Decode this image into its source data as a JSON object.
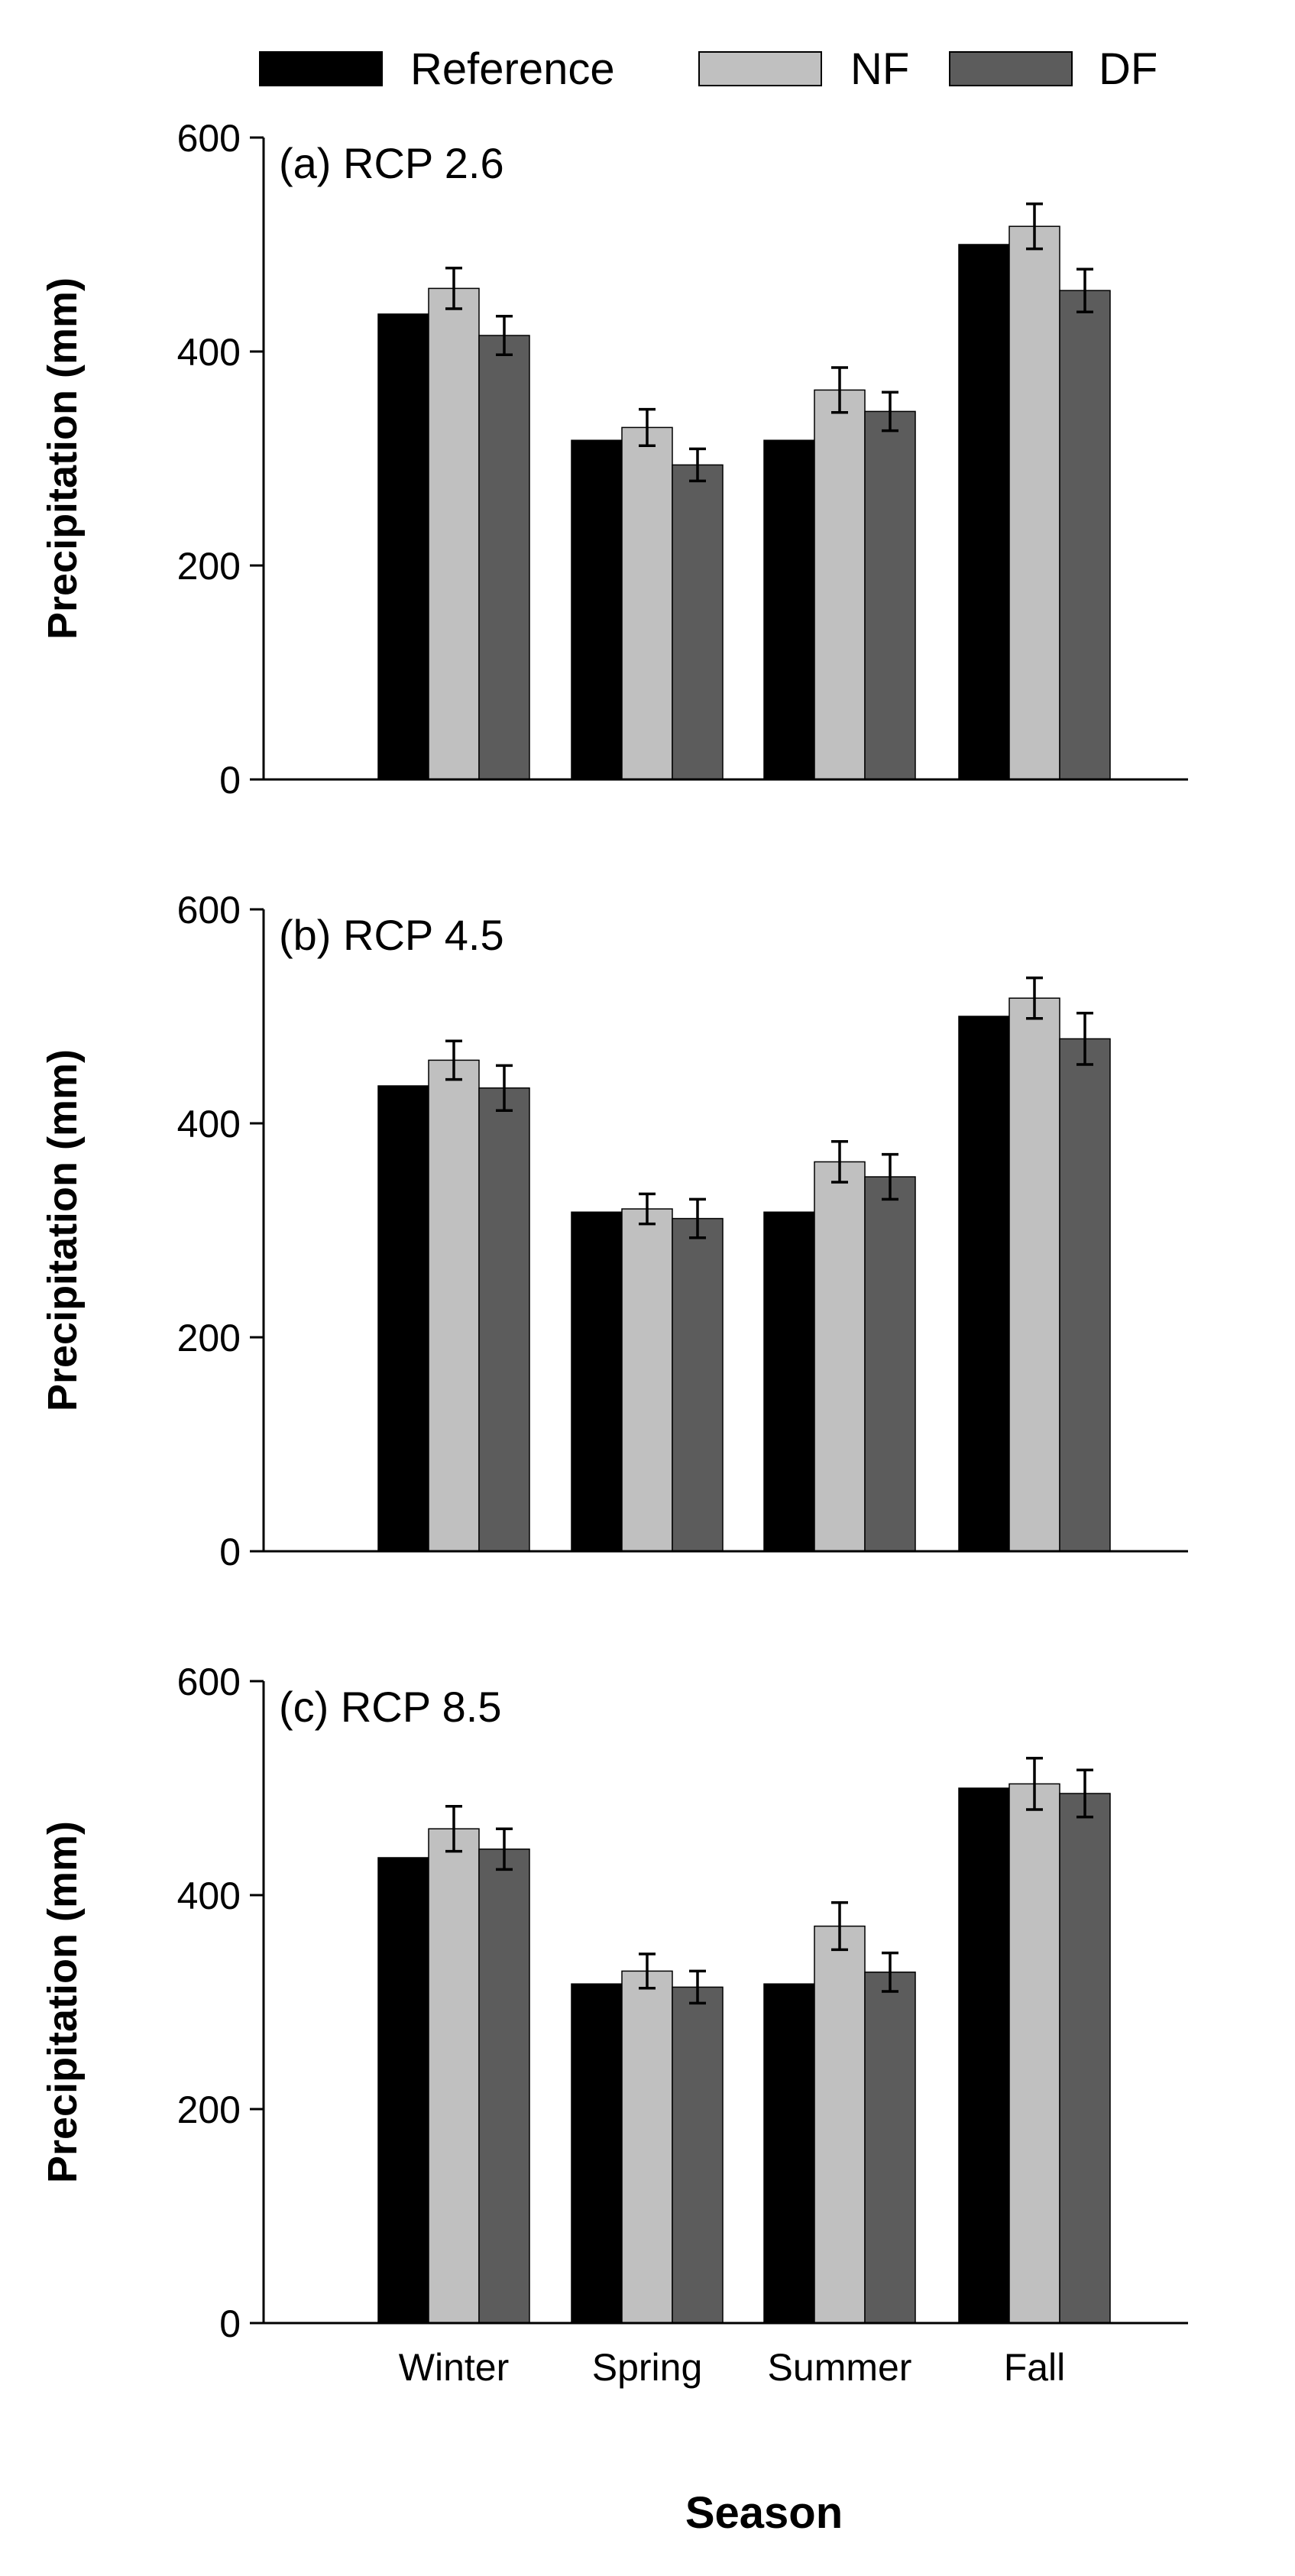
{
  "chart_data": {
    "type": "bar",
    "xlabel": "Season",
    "ylabel": "Precipitation (mm)",
    "ylim": [
      0,
      600
    ],
    "yticks": [
      0,
      200,
      400,
      600
    ],
    "categories": [
      "Winter",
      "Spring",
      "Summer",
      "Fall"
    ],
    "legend": {
      "position": "top",
      "entries": [
        {
          "name": "Reference",
          "color": "#000000"
        },
        {
          "name": "NF",
          "color": "#c0c0c0"
        },
        {
          "name": "DF",
          "color": "#5c5c5c"
        }
      ]
    },
    "panels": [
      {
        "id": "a",
        "label": "(a) RCP 2.6",
        "series": [
          {
            "name": "Reference",
            "color": "#000000",
            "values": [
              435,
              317,
              317,
              500
            ],
            "errors": [
              0,
              0,
              0,
              0
            ]
          },
          {
            "name": "NF",
            "color": "#c0c0c0",
            "values": [
              459,
              329,
              364,
              517
            ],
            "errors": [
              19,
              17,
              21,
              21
            ]
          },
          {
            "name": "DF",
            "color": "#5c5c5c",
            "values": [
              415,
              294,
              344,
              457
            ],
            "errors": [
              18,
              15,
              18,
              20
            ]
          }
        ]
      },
      {
        "id": "b",
        "label": "(b) RCP 4.5",
        "series": [
          {
            "name": "Reference",
            "color": "#000000",
            "values": [
              435,
              317,
              317,
              500
            ],
            "errors": [
              0,
              0,
              0,
              0
            ]
          },
          {
            "name": "NF",
            "color": "#c0c0c0",
            "values": [
              459,
              320,
              364,
              517
            ],
            "errors": [
              18,
              14,
              19,
              19
            ]
          },
          {
            "name": "DF",
            "color": "#5c5c5c",
            "values": [
              433,
              311,
              350,
              479
            ],
            "errors": [
              21,
              18,
              21,
              24
            ]
          }
        ]
      },
      {
        "id": "c",
        "label": "(c) RCP 8.5",
        "series": [
          {
            "name": "Reference",
            "color": "#000000",
            "values": [
              435,
              317,
              317,
              500
            ],
            "errors": [
              0,
              0,
              0,
              0
            ]
          },
          {
            "name": "NF",
            "color": "#c0c0c0",
            "values": [
              462,
              329,
              371,
              504
            ],
            "errors": [
              21,
              16,
              22,
              24
            ]
          },
          {
            "name": "DF",
            "color": "#5c5c5c",
            "values": [
              443,
              314,
              328,
              495
            ],
            "errors": [
              19,
              15,
              18,
              22
            ]
          }
        ]
      }
    ]
  }
}
